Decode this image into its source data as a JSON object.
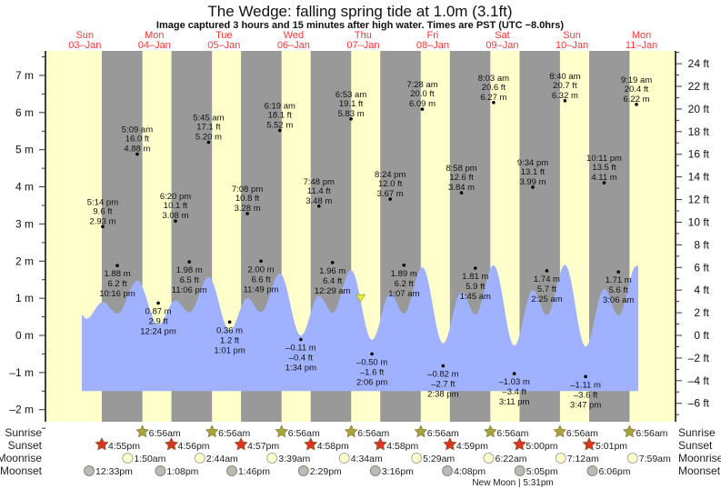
{
  "chart_data": {
    "type": "area",
    "title": "The Wedge: falling  spring tide at 1.0m (3.1ft)",
    "subtitle": "Image captured 3 hours and 15 minutes after high water. Times are PST (UTC −8.0hrs)",
    "days": [
      {
        "dow": "Sun",
        "date": "03–Jan"
      },
      {
        "dow": "Mon",
        "date": "04–Jan"
      },
      {
        "dow": "Tue",
        "date": "05–Jan"
      },
      {
        "dow": "Wed",
        "date": "06–Jan"
      },
      {
        "dow": "Thu",
        "date": "07–Jan"
      },
      {
        "dow": "Fri",
        "date": "08–Jan"
      },
      {
        "dow": "Sat",
        "date": "09–Jan"
      },
      {
        "dow": "Sun",
        "date": "10–Jan"
      },
      {
        "dow": "Mon",
        "date": "11–Jan"
      }
    ],
    "y_left": {
      "unit": "m",
      "ticks": [
        7,
        6,
        5,
        4,
        3,
        2,
        1,
        0,
        -1,
        -2
      ],
      "range": [
        -2.4,
        7.7
      ]
    },
    "y_right": {
      "unit": "ft",
      "ticks": [
        24,
        22,
        20,
        18,
        16,
        14,
        12,
        10,
        8,
        6,
        4,
        2,
        0,
        -2,
        -4,
        -6
      ]
    },
    "current": {
      "level_m": 1.0,
      "level_ft": 3.1,
      "day": 4,
      "time": "10:08 am"
    },
    "tides": [
      {
        "day": 0,
        "time": "5:14 pm",
        "m": 2.93,
        "ft": 9.6
      },
      {
        "day": 0,
        "time": "10:16 pm",
        "m": 1.88,
        "ft": 6.2
      },
      {
        "day": 1,
        "time": "5:09 am",
        "m": 4.88,
        "ft": 16.0
      },
      {
        "day": 1,
        "time": "12:24 pm",
        "m": 0.87,
        "ft": 2.9
      },
      {
        "day": 1,
        "time": "6:20 pm",
        "m": 3.08,
        "ft": 10.1
      },
      {
        "day": 1,
        "time": "11:06 pm",
        "m": 1.98,
        "ft": 6.5
      },
      {
        "day": 2,
        "time": "5:45 am",
        "m": 5.2,
        "ft": 17.1
      },
      {
        "day": 2,
        "time": "1:01 pm",
        "m": 0.36,
        "ft": 1.2
      },
      {
        "day": 2,
        "time": "7:08 pm",
        "m": 3.28,
        "ft": 10.8
      },
      {
        "day": 2,
        "time": "11:49 pm",
        "m": 2.0,
        "ft": 6.6
      },
      {
        "day": 3,
        "time": "6:19 am",
        "m": 5.52,
        "ft": 18.1
      },
      {
        "day": 3,
        "time": "1:34 pm",
        "m": -0.11,
        "ft": -0.4
      },
      {
        "day": 3,
        "time": "7:48 pm",
        "m": 3.48,
        "ft": 11.4
      },
      {
        "day": 4,
        "time": "12:29 am",
        "m": 1.96,
        "ft": 6.4
      },
      {
        "day": 4,
        "time": "6:53 am",
        "m": 5.83,
        "ft": 19.1
      },
      {
        "day": 4,
        "time": "2:06 pm",
        "m": -0.5,
        "ft": -1.6
      },
      {
        "day": 4,
        "time": "8:24 pm",
        "m": 3.67,
        "ft": 12.0
      },
      {
        "day": 5,
        "time": "1:07 am",
        "m": 1.89,
        "ft": 6.2
      },
      {
        "day": 5,
        "time": "7:28 am",
        "m": 6.09,
        "ft": 20.0
      },
      {
        "day": 5,
        "time": "2:38 pm",
        "m": -0.82,
        "ft": -2.7
      },
      {
        "day": 5,
        "time": "8:58 pm",
        "m": 3.84,
        "ft": 12.6
      },
      {
        "day": 6,
        "time": "1:45 am",
        "m": 1.81,
        "ft": 5.9
      },
      {
        "day": 6,
        "time": "8:03 am",
        "m": 6.27,
        "ft": 20.6
      },
      {
        "day": 6,
        "time": "3:11 pm",
        "m": -1.03,
        "ft": -3.4
      },
      {
        "day": 6,
        "time": "9:34 pm",
        "m": 3.99,
        "ft": 13.1
      },
      {
        "day": 7,
        "time": "2:25 am",
        "m": 1.74,
        "ft": 5.7
      },
      {
        "day": 7,
        "time": "8:40 am",
        "m": 6.32,
        "ft": 20.7
      },
      {
        "day": 7,
        "time": "3:47 pm",
        "m": -1.11,
        "ft": -3.6
      },
      {
        "day": 7,
        "time": "10:11 pm",
        "m": 4.11,
        "ft": 13.5
      },
      {
        "day": 8,
        "time": "3:06 am",
        "m": 1.71,
        "ft": 5.6
      },
      {
        "day": 8,
        "time": "9:19 am",
        "m": 6.22,
        "ft": 20.4
      }
    ],
    "astro_labels": {
      "sunrise": "Sunrise",
      "sunset": "Sunset",
      "moonrise": "Moonrise",
      "moonset": "Moonset"
    },
    "sunrise": [
      {
        "day": 1,
        "time": "6:56am"
      },
      {
        "day": 2,
        "time": "6:56am"
      },
      {
        "day": 3,
        "time": "6:56am"
      },
      {
        "day": 4,
        "time": "6:56am"
      },
      {
        "day": 5,
        "time": "6:56am"
      },
      {
        "day": 6,
        "time": "6:56am"
      },
      {
        "day": 7,
        "time": "6:56am"
      },
      {
        "day": 8,
        "time": "6:56am"
      }
    ],
    "sunset": [
      {
        "day": 0,
        "time": "4:55pm"
      },
      {
        "day": 1,
        "time": "4:56pm"
      },
      {
        "day": 2,
        "time": "4:57pm"
      },
      {
        "day": 3,
        "time": "4:58pm"
      },
      {
        "day": 4,
        "time": "4:58pm"
      },
      {
        "day": 5,
        "time": "4:59pm"
      },
      {
        "day": 6,
        "time": "5:00pm"
      },
      {
        "day": 7,
        "time": "5:01pm"
      }
    ],
    "moonrise": [
      {
        "day": 1,
        "time": "1:50am"
      },
      {
        "day": 2,
        "time": "2:44am"
      },
      {
        "day": 3,
        "time": "3:39am"
      },
      {
        "day": 4,
        "time": "4:34am"
      },
      {
        "day": 5,
        "time": "5:29am"
      },
      {
        "day": 6,
        "time": "6:22am"
      },
      {
        "day": 7,
        "time": "7:12am"
      },
      {
        "day": 8,
        "time": "7:59am"
      }
    ],
    "moonset": [
      {
        "day": 0,
        "time": "12:33pm"
      },
      {
        "day": 1,
        "time": "1:08pm"
      },
      {
        "day": 2,
        "time": "1:46pm"
      },
      {
        "day": 3,
        "time": "2:29pm"
      },
      {
        "day": 4,
        "time": "3:16pm"
      },
      {
        "day": 5,
        "time": "4:08pm"
      },
      {
        "day": 6,
        "time": "5:05pm"
      },
      {
        "day": 7,
        "time": "6:06pm"
      }
    ],
    "moon_phase": {
      "day": 6,
      "label": "New Moon | 5:31pm"
    },
    "colors": {
      "day": "#ffffcc",
      "night": "#999999",
      "water": "#a0b2ff",
      "day_label": "#ff3333",
      "marker": "#e8e83a",
      "sun_rise": "#aaa23c",
      "sun_set": "#dd3322",
      "moon_rise": "#ffffcc",
      "moon_set": "#bbbbaf"
    }
  }
}
